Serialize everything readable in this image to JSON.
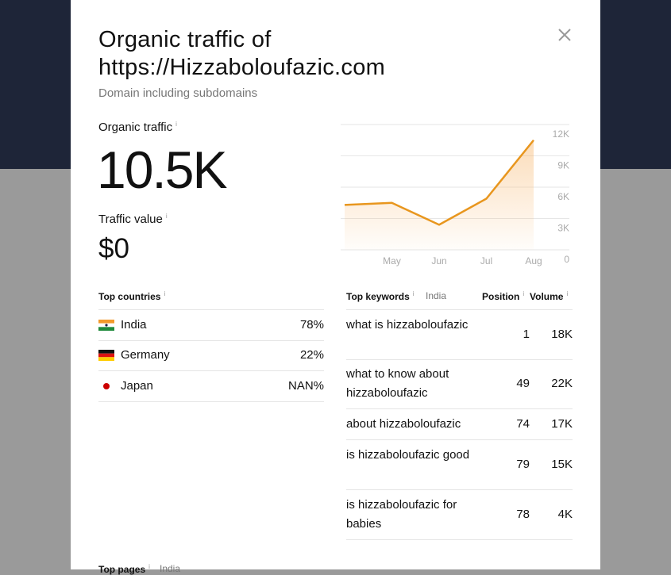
{
  "modal": {
    "title": "Organic traffic of https://Hizzaboloufazic.com",
    "subtitle": "Domain including subdomains",
    "organic_label": "Organic traffic",
    "organic_value": "10.5K",
    "traffic_value_label": "Traffic value",
    "traffic_value": "$0"
  },
  "chart_data": {
    "type": "line",
    "categories": [
      null,
      "May",
      "Jun",
      "Jul",
      "Aug"
    ],
    "values": [
      4300,
      4500,
      2400,
      4900,
      10500
    ],
    "color": "#e8961e",
    "ylim": [
      0,
      12000
    ],
    "yticks": [
      0,
      {
        "value": 3000,
        "label": "3K"
      },
      {
        "value": 6000,
        "label": "6K"
      },
      {
        "value": 9000,
        "label": "9K"
      },
      {
        "value": 12000,
        "label": "12K"
      }
    ],
    "grid": true
  },
  "countries": {
    "title": "Top countries",
    "rows": [
      [
        "India",
        "78%"
      ],
      [
        "Germany",
        "22%"
      ],
      [
        "Japan",
        "NAN%"
      ]
    ]
  },
  "keywords": {
    "title": "Top keywords",
    "filter": "India",
    "columns": [
      "Position",
      "Volume"
    ],
    "rows": [
      [
        "what is hizzaboloufazic",
        "1",
        "18K"
      ],
      [
        "what to know about hizzaboloufazic",
        "49",
        "22K"
      ],
      [
        "about hizzaboloufazic",
        "74",
        "17K"
      ],
      [
        "is hizzaboloufazic good",
        "79",
        "15K"
      ],
      [
        "is hizzaboloufazic for babies",
        "78",
        "4K"
      ]
    ]
  },
  "pages": {
    "title": "Top pages",
    "filter": "India"
  }
}
